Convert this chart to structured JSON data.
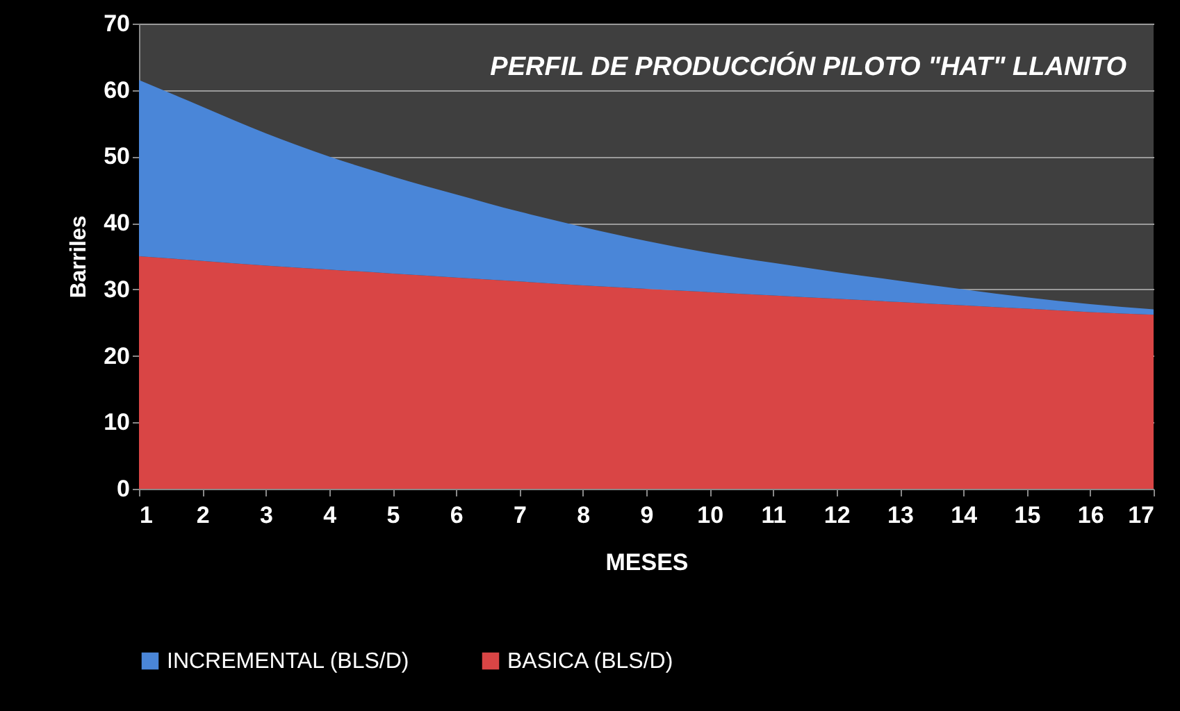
{
  "chart_data": {
    "type": "area",
    "title": "PERFIL DE PRODUCCIÓN PILOTO \"HAT\" LLANITO",
    "xlabel": "MESES",
    "ylabel": "Barriles",
    "x": [
      1,
      2,
      3,
      4,
      5,
      6,
      7,
      8,
      9,
      10,
      11,
      12,
      13,
      14,
      15,
      16,
      17
    ],
    "stacked": true,
    "series": [
      {
        "name": "BASICA (BLS/D)",
        "color": "#d94545",
        "values": [
          35,
          34.3,
          33.6,
          33,
          32.4,
          31.8,
          31.2,
          30.6,
          30.1,
          29.6,
          29.1,
          28.6,
          28.1,
          27.6,
          27.1,
          26.6,
          26.2
        ]
      },
      {
        "name": "INCREMENTAL (BLS/D)",
        "color": "#4a86d8",
        "values": [
          26.5,
          23.2,
          19.9,
          17,
          14.6,
          12.5,
          10.5,
          8.8,
          7.2,
          5.9,
          4.9,
          4,
          3.2,
          2.4,
          1.7,
          1.2,
          0.8
        ]
      }
    ],
    "xlim": [
      1,
      17
    ],
    "xticks": [
      1,
      2,
      3,
      4,
      5,
      6,
      7,
      8,
      9,
      10,
      11,
      12,
      13,
      14,
      15,
      16,
      17
    ],
    "ylim": [
      0,
      70
    ],
    "yticks": [
      0,
      10,
      20,
      30,
      40,
      50,
      60,
      70
    ],
    "grid": "y",
    "legend": "bottom"
  }
}
